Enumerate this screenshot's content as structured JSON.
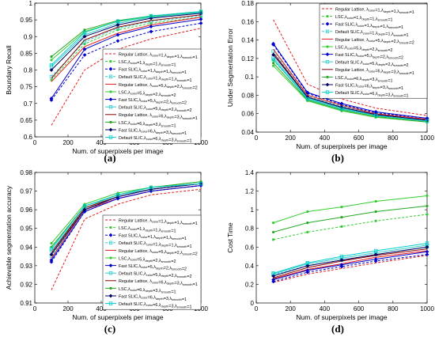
{
  "figure": {
    "captions": [
      "(a)",
      "(b)",
      "(c)",
      "(d)"
    ]
  },
  "legend_entries": [
    {
      "text": "Regular Lattice, λ",
      "sub1": "color",
      "m1": "=1,λ",
      "sub2": "depth",
      "m2": "=1,λ",
      "sub3": "smooth",
      "m3": "=1"
    },
    {
      "text": "LSC,λ",
      "sub1": "color",
      "m1": "=1,λ",
      "sub2": "depth",
      "m2": "=1,λ",
      "sub3": "smooth",
      "m3": "=1"
    },
    {
      "text": "Fast SLIC,λ",
      "sub1": "color",
      "m1": "=1,λ",
      "sub2": "depth",
      "m2": "=1,λ",
      "sub3": "smooth",
      "m3": "=1"
    },
    {
      "text": "Default SLIC,λ",
      "sub1": "color",
      "m1": "=1,λ",
      "sub2": "depth",
      "m2": "=1,λ",
      "sub3": "smooth",
      "m3": "=1"
    },
    {
      "text": "Regular Lattice, λ",
      "sub1": "color",
      "m1": "=5,λ",
      "sub2": "depth",
      "m2": "=2,λ",
      "sub3": "smooth",
      "m3": "=2"
    },
    {
      "text": "LSC,λ",
      "sub1": "color",
      "m1": "=5,λ",
      "sub2": "depth",
      "m2": "=2,λ",
      "sub3": "smooth",
      "m3": "=2"
    },
    {
      "text": "Fast SLIC,λ",
      "sub1": "color",
      "m1": "=5,λ",
      "sub2": "depth",
      "m2": "=2,λ",
      "sub3": "smooth",
      "m3": "=2"
    },
    {
      "text": "Default SLIC,λ",
      "sub1": "color",
      "m1": "=5,λ",
      "sub2": "depth",
      "m2": "=2,λ",
      "sub3": "smooth",
      "m3": "=2"
    },
    {
      "text": "Regular Lattice, λ",
      "sub1": "color",
      "m1": "=6,λ",
      "sub2": "depth",
      "m2": "=3,λ",
      "sub3": "smooth",
      "m3": "=1"
    },
    {
      "text": "LSC,λ",
      "sub1": "color",
      "m1": "=6,λ",
      "sub2": "depth",
      "m2": "=3,λ",
      "sub3": "smooth",
      "m3": "=1"
    },
    {
      "text": "Fast SLIC,λ",
      "sub1": "color",
      "m1": "=6,λ",
      "sub2": "depth",
      "m2": "=3,λ",
      "sub3": "smooth",
      "m3": "=1"
    },
    {
      "text": "Default SLIC,λ",
      "sub1": "color",
      "m1": "=6,λ",
      "sub2": "depth",
      "m2": "=3,λ",
      "sub3": "smooth",
      "m3": "=1"
    }
  ],
  "series_styles": [
    {
      "color": "#e31a1c",
      "dash": "3,2",
      "marker": "none"
    },
    {
      "color": "#33cc33",
      "dash": "3,2",
      "marker": "dot"
    },
    {
      "color": "#0000cc",
      "dash": "3,2",
      "marker": "diamond"
    },
    {
      "color": "#33cccc",
      "dash": "3,2",
      "marker": "square"
    },
    {
      "color": "#e31a1c",
      "dash": "",
      "marker": "none"
    },
    {
      "color": "#33cc33",
      "dash": "",
      "marker": "dot"
    },
    {
      "color": "#0000cc",
      "dash": "",
      "marker": "diamond"
    },
    {
      "color": "#33cccc",
      "dash": "",
      "marker": "square"
    },
    {
      "color": "#8b0000",
      "dash": "",
      "marker": "none"
    },
    {
      "color": "#22aa22",
      "dash": "",
      "marker": "dot"
    },
    {
      "color": "#000066",
      "dash": "",
      "marker": "diamond"
    },
    {
      "color": "#00cccc",
      "dash": "",
      "marker": "square"
    }
  ],
  "chart_data": [
    {
      "type": "line",
      "caption": "(a)",
      "xlabel": "Num. of superpixels per image",
      "ylabel": "Boundary Recall",
      "x": [
        100,
        300,
        500,
        700,
        1000
      ],
      "xlim": [
        0,
        1000
      ],
      "ylim": [
        0.6,
        1.0
      ],
      "xticks": [
        0,
        200,
        400,
        600,
        800,
        1000
      ],
      "yticks": [
        "0.6",
        "0.65",
        "0.7",
        "0.75",
        "0.8",
        "0.85",
        "0.9",
        "0.95",
        "1"
      ],
      "legend": "lower-right",
      "series": [
        {
          "values": [
            0.635,
            0.8,
            0.862,
            0.893,
            0.925
          ]
        },
        {
          "values": [
            0.77,
            0.878,
            0.92,
            0.94,
            0.958
          ]
        },
        {
          "values": [
            0.71,
            0.845,
            0.887,
            0.915,
            0.94
          ]
        },
        {
          "values": [
            0.78,
            0.885,
            0.925,
            0.945,
            0.962
          ]
        },
        {
          "values": [
            0.765,
            0.87,
            0.91,
            0.935,
            0.958
          ]
        },
        {
          "values": [
            0.83,
            0.915,
            0.945,
            0.96,
            0.972
          ]
        },
        {
          "values": [
            0.715,
            0.862,
            0.905,
            0.93,
            0.952
          ]
        },
        {
          "values": [
            0.81,
            0.905,
            0.94,
            0.958,
            0.972
          ]
        },
        {
          "values": [
            0.775,
            0.89,
            0.928,
            0.948,
            0.965
          ]
        },
        {
          "values": [
            0.84,
            0.92,
            0.948,
            0.962,
            0.975
          ]
        },
        {
          "values": [
            0.8,
            0.9,
            0.935,
            0.955,
            0.97
          ]
        },
        {
          "values": [
            0.815,
            0.912,
            0.946,
            0.962,
            0.975
          ]
        }
      ]
    },
    {
      "type": "line",
      "caption": "(b)",
      "xlabel": "Num. of superpixels per image",
      "ylabel": "Under Segmentation Error",
      "x": [
        100,
        300,
        500,
        700,
        1000
      ],
      "xlim": [
        0,
        1000
      ],
      "ylim": [
        0.04,
        0.18
      ],
      "xticks": [
        0,
        200,
        400,
        600,
        800,
        1000
      ],
      "yticks": [
        "0.04",
        "0.06",
        "0.08",
        "0.1",
        "0.12",
        "0.14",
        "0.16",
        "0.18"
      ],
      "legend": "upper-right",
      "series": [
        {
          "values": [
            0.162,
            0.092,
            0.076,
            0.066,
            0.058
          ]
        },
        {
          "values": [
            0.118,
            0.077,
            0.066,
            0.058,
            0.053
          ]
        },
        {
          "values": [
            0.135,
            0.082,
            0.07,
            0.061,
            0.055
          ]
        },
        {
          "values": [
            0.128,
            0.079,
            0.068,
            0.06,
            0.054
          ]
        },
        {
          "values": [
            0.13,
            0.08,
            0.069,
            0.06,
            0.054
          ]
        },
        {
          "values": [
            0.112,
            0.074,
            0.063,
            0.056,
            0.051
          ]
        },
        {
          "values": [
            0.136,
            0.083,
            0.071,
            0.062,
            0.055
          ]
        },
        {
          "values": [
            0.121,
            0.077,
            0.066,
            0.058,
            0.052
          ]
        },
        {
          "values": [
            0.126,
            0.078,
            0.067,
            0.059,
            0.053
          ]
        },
        {
          "values": [
            0.115,
            0.075,
            0.064,
            0.057,
            0.051
          ]
        },
        {
          "values": [
            0.124,
            0.078,
            0.067,
            0.059,
            0.053
          ]
        },
        {
          "values": [
            0.119,
            0.076,
            0.065,
            0.058,
            0.052
          ]
        }
      ]
    },
    {
      "type": "line",
      "caption": "(c)",
      "xlabel": "Num. of superpixels per image",
      "ylabel": "Achievable segmentation accuracy",
      "x": [
        100,
        300,
        500,
        700,
        1000
      ],
      "xlim": [
        0,
        1000
      ],
      "ylim": [
        0.91,
        0.98
      ],
      "xticks": [
        0,
        200,
        400,
        600,
        800,
        1000
      ],
      "yticks": [
        "0.91",
        "0.92",
        "0.93",
        "0.94",
        "0.95",
        "0.96",
        "0.97",
        "0.98"
      ],
      "legend": "lower-right",
      "series": [
        {
          "values": [
            0.917,
            0.955,
            0.963,
            0.968,
            0.971
          ]
        },
        {
          "values": [
            0.936,
            0.961,
            0.967,
            0.971,
            0.974
          ]
        },
        {
          "values": [
            0.932,
            0.959,
            0.966,
            0.97,
            0.973
          ]
        },
        {
          "values": [
            0.935,
            0.96,
            0.967,
            0.971,
            0.974
          ]
        },
        {
          "values": [
            0.934,
            0.96,
            0.966,
            0.97,
            0.973
          ]
        },
        {
          "values": [
            0.942,
            0.963,
            0.969,
            0.972,
            0.975
          ]
        },
        {
          "values": [
            0.933,
            0.959,
            0.966,
            0.97,
            0.973
          ]
        },
        {
          "values": [
            0.938,
            0.961,
            0.968,
            0.971,
            0.974
          ]
        },
        {
          "values": [
            0.937,
            0.961,
            0.967,
            0.971,
            0.974
          ]
        },
        {
          "values": [
            0.94,
            0.962,
            0.968,
            0.972,
            0.975
          ]
        },
        {
          "values": [
            0.936,
            0.96,
            0.967,
            0.971,
            0.974
          ]
        },
        {
          "values": [
            0.939,
            0.962,
            0.968,
            0.972,
            0.974
          ]
        }
      ]
    },
    {
      "type": "line",
      "caption": "(d)",
      "xlabel": "Num. of superpixels per image",
      "ylabel": "Cost Time",
      "x": [
        100,
        300,
        500,
        700,
        1000
      ],
      "xlim": [
        0,
        1000
      ],
      "ylim": [
        0,
        1.4
      ],
      "xticks": [
        0,
        200,
        400,
        600,
        800,
        1000
      ],
      "yticks": [
        "0",
        "0.2",
        "0.4",
        "0.6",
        "0.8",
        "1",
        "1.2",
        "1.4"
      ],
      "legend": "none",
      "series": [
        {
          "values": [
            0.22,
            0.31,
            0.37,
            0.43,
            0.51
          ]
        },
        {
          "values": [
            0.68,
            0.76,
            0.82,
            0.88,
            0.95
          ]
        },
        {
          "values": [
            0.23,
            0.33,
            0.39,
            0.45,
            0.52
          ]
        },
        {
          "values": [
            0.3,
            0.4,
            0.46,
            0.52,
            0.6
          ]
        },
        {
          "values": [
            0.26,
            0.36,
            0.42,
            0.49,
            0.56
          ]
        },
        {
          "values": [
            0.86,
            0.98,
            1.03,
            1.09,
            1.15
          ]
        },
        {
          "values": [
            0.25,
            0.35,
            0.41,
            0.47,
            0.55
          ]
        },
        {
          "values": [
            0.31,
            0.42,
            0.48,
            0.54,
            0.62
          ]
        },
        {
          "values": [
            0.27,
            0.38,
            0.45,
            0.51,
            0.58
          ]
        },
        {
          "values": [
            0.76,
            0.86,
            0.92,
            0.98,
            1.04
          ]
        },
        {
          "values": [
            0.29,
            0.4,
            0.46,
            0.52,
            0.6
          ]
        },
        {
          "values": [
            0.32,
            0.43,
            0.5,
            0.56,
            0.64
          ]
        }
      ]
    }
  ]
}
